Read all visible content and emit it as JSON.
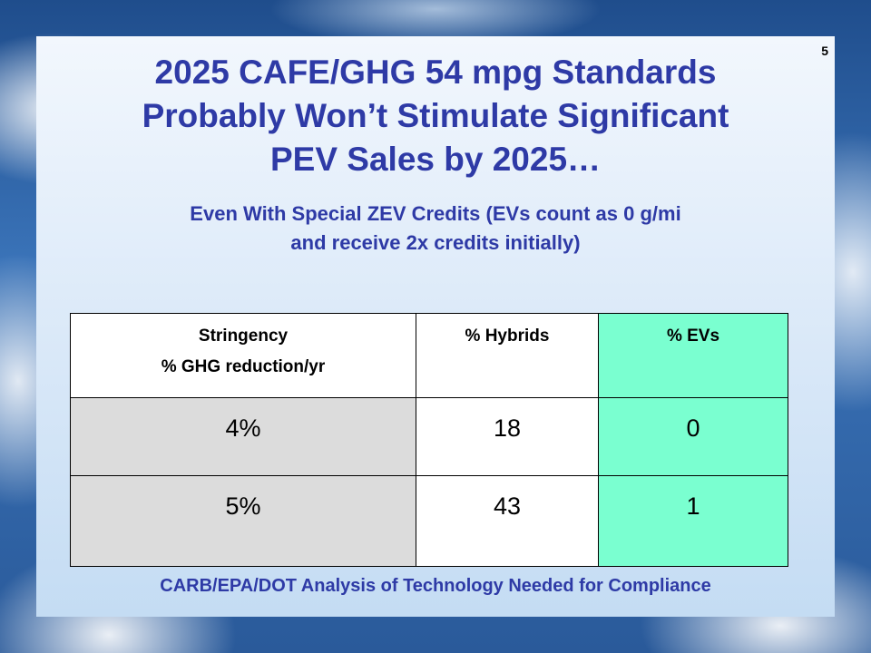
{
  "slide": {
    "number": "5",
    "title_lines": [
      "2025 CAFE/GHG 54 mpg Standards",
      "Probably Won’t Stimulate Significant",
      "PEV Sales by 2025…"
    ],
    "subtitle_lines": [
      "Even With Special ZEV Credits (EVs count as 0 g/mi",
      "and receive 2x credits initially)"
    ],
    "table": {
      "headers": {
        "stringency_line1": "Stringency",
        "stringency_line2": "% GHG reduction/yr",
        "hybrids": "% Hybrids",
        "evs": "% EVs"
      },
      "rows": [
        {
          "stringency": "4%",
          "hybrids": "18",
          "evs": "0"
        },
        {
          "stringency": "5%",
          "hybrids": "43",
          "evs": "1"
        }
      ]
    },
    "footer": "CARB/EPA/DOT Analysis of Technology Needed for Compliance"
  },
  "colors": {
    "title_text": "#2e3aa6",
    "ev_column": "#7affd0",
    "stringency_column": "#dcdcdc"
  }
}
